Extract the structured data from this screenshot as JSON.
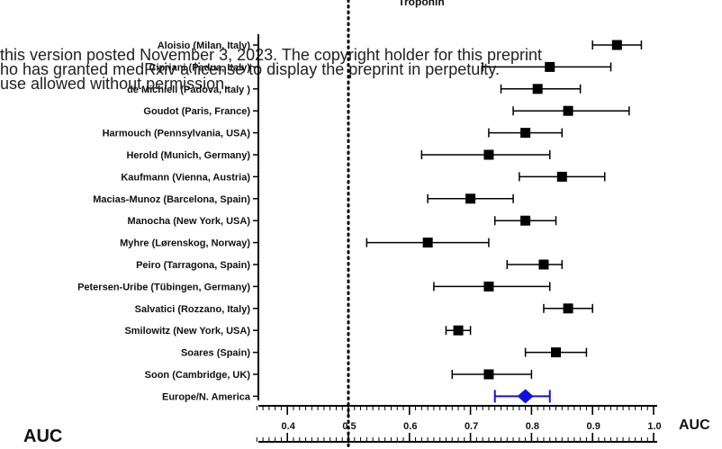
{
  "watermark": {
    "line1": "this version posted November 3, 2023. The copyright holder for this preprint",
    "line2": "ho has granted medRxiv a license to display the preprint in perpetuity.",
    "line3": "use allowed without permission."
  },
  "bottom_label": "AUC",
  "colors": {
    "marker": "#000000",
    "summary": "#1010e6",
    "reference_line": "#000000"
  },
  "chart_data": {
    "type": "forest",
    "title": "Troponin",
    "xlabel": "AUC",
    "xlim": [
      0.35,
      1.0
    ],
    "xticks": [
      0.4,
      0.5,
      0.6,
      0.7,
      0.8,
      0.9,
      1.0
    ],
    "xtick_labels": [
      "0.4",
      "0.5",
      "0.6",
      "0.7",
      "0.8",
      "0.9",
      "1.0"
    ],
    "reference_line": 0.5,
    "studies": [
      {
        "label": "Aloisio (Milan, Italy)",
        "auc": 0.94,
        "lo": 0.9,
        "hi": 0.98
      },
      {
        "label": "Cipriani (Padua, Italy)",
        "auc": 0.83,
        "lo": 0.72,
        "hi": 0.93
      },
      {
        "label": "de Michieli (Padova, Italy )",
        "auc": 0.81,
        "lo": 0.75,
        "hi": 0.88
      },
      {
        "label": "Goudot (Paris, France)",
        "auc": 0.86,
        "lo": 0.77,
        "hi": 0.96
      },
      {
        "label": "Harmouch (Pennsylvania, USA)",
        "auc": 0.79,
        "lo": 0.73,
        "hi": 0.85
      },
      {
        "label": "Herold (Munich, Germany)",
        "auc": 0.73,
        "lo": 0.62,
        "hi": 0.83
      },
      {
        "label": "Kaufmann (Vienna, Austria)",
        "auc": 0.85,
        "lo": 0.78,
        "hi": 0.92
      },
      {
        "label": "Macias-Munoz (Barcelona, Spain)",
        "auc": 0.7,
        "lo": 0.63,
        "hi": 0.77
      },
      {
        "label": "Manocha (New York, USA)",
        "auc": 0.79,
        "lo": 0.74,
        "hi": 0.84
      },
      {
        "label": "Myhre (Lørenskog, Norway)",
        "auc": 0.63,
        "lo": 0.53,
        "hi": 0.73
      },
      {
        "label": "Peiro (Tarragona, Spain)",
        "auc": 0.82,
        "lo": 0.76,
        "hi": 0.85
      },
      {
        "label": "Petersen-Uribe (Tübingen, Germany)",
        "auc": 0.73,
        "lo": 0.64,
        "hi": 0.83
      },
      {
        "label": "Salvatici (Rozzano, Italy)",
        "auc": 0.86,
        "lo": 0.82,
        "hi": 0.9
      },
      {
        "label": "Smilowitz (New York, USA)",
        "auc": 0.68,
        "lo": 0.66,
        "hi": 0.7
      },
      {
        "label": "Soares (Spain)",
        "auc": 0.84,
        "lo": 0.79,
        "hi": 0.89
      },
      {
        "label": "Soon (Cambridge, UK)",
        "auc": 0.73,
        "lo": 0.67,
        "hi": 0.8
      }
    ],
    "summary": {
      "label": "Europe/N. America",
      "auc": 0.79,
      "lo": 0.74,
      "hi": 0.83
    }
  }
}
